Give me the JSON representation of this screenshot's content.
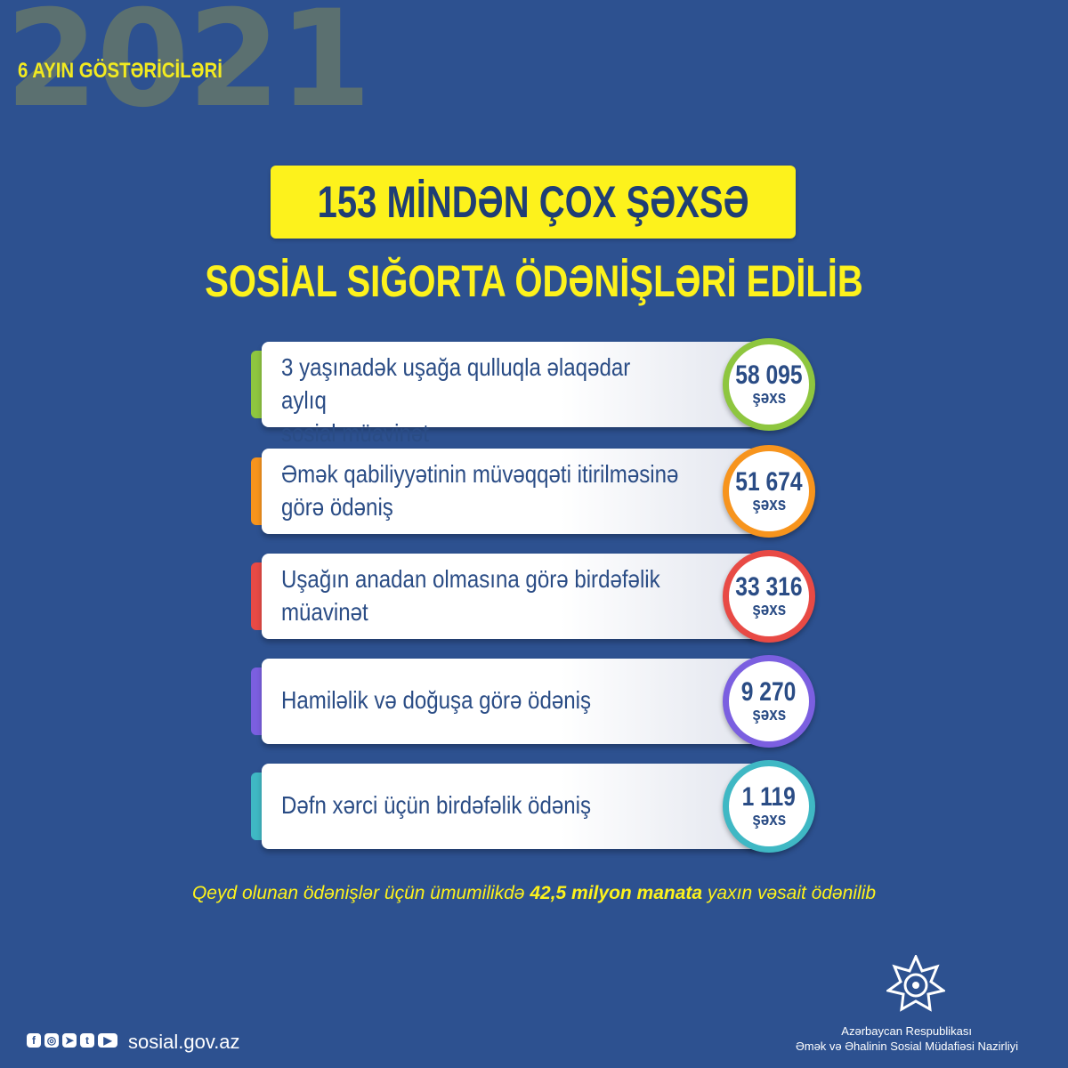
{
  "header": {
    "year": "2021",
    "period": "6 AYIN GÖSTƏRİCİLƏRİ"
  },
  "headline": {
    "boxed": "153 MİNDƏN ÇOX ŞƏXSƏ",
    "sub": "SOSİAL SIĞORTA ÖDƏNİŞLƏRİ EDİLİB"
  },
  "items": [
    {
      "line1": "3 yaşınadək uşağa qulluqla əlaqədar aylıq",
      "line2": "sosial müavinət",
      "count": "58 095",
      "unit": "şəxs",
      "color": "#8ec63f"
    },
    {
      "line1": "Əmək qabiliyyətinin müvəqqəti itirilməsinə",
      "line2": "görə ödəniş",
      "count": "51 674",
      "unit": "şəxs",
      "color": "#f7941d"
    },
    {
      "line1": "Uşağın anadan olmasına görə birdəfəlik",
      "line2": "müavinət",
      "count": "33 316",
      "unit": "şəxs",
      "color": "#e84a45"
    },
    {
      "line1": "Hamiləlik və doğuşa görə ödəniş",
      "line2": "",
      "count": "9 270",
      "unit": "şəxs",
      "color": "#7b5fe0"
    },
    {
      "line1": "Dəfn xərci üçün birdəfəlik ödəniş",
      "line2": "",
      "count": "1 119",
      "unit": "şəxs",
      "color": "#3fb8c4"
    }
  ],
  "note": {
    "before": "Qeyd olunan ödənişlər üçün ümumilikdə ",
    "bold": "42,5 milyon manata",
    "after": " yaxın vəsait ödənilib"
  },
  "footer": {
    "site": "sosial.gov.az",
    "social_icons": [
      "facebook-icon",
      "instagram-icon",
      "telegram-icon",
      "twitter-icon",
      "youtube-icon"
    ],
    "org_line1": "Azərbaycan Respublikası",
    "org_line2": "Əmək və Əhalinin Sosial Müdafiəsi Nazirliyi"
  }
}
